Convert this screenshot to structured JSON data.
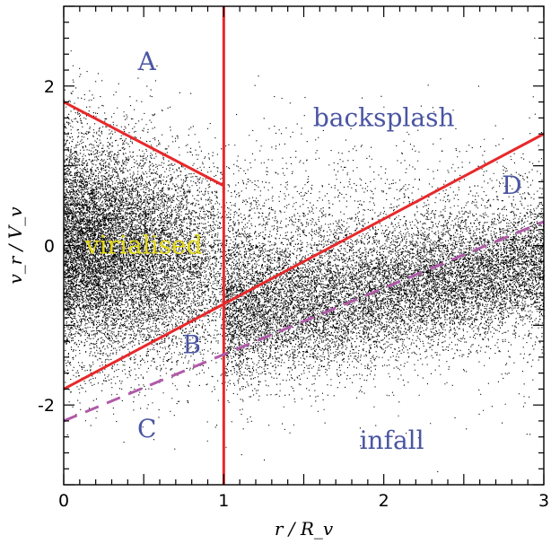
{
  "chart_data": {
    "type": "scatter",
    "title": "",
    "xlabel": "r / R_v",
    "ylabel": "v_r / V_v",
    "xlim": [
      0,
      3
    ],
    "ylim": [
      -3,
      3
    ],
    "xticks": [
      "0",
      "1",
      "2",
      "3"
    ],
    "yticks": [
      "-2",
      "0",
      "2"
    ],
    "grid": false,
    "colors": {
      "points": "#000000",
      "lines": "#e8282b",
      "dashed": "#b05aa8",
      "labels": "#4a55a2",
      "virialised": "#e3d713"
    },
    "lines": [
      {
        "id": "vertical",
        "style": "solid",
        "x": [
          1,
          1
        ],
        "y": [
          -3,
          3
        ]
      },
      {
        "id": "upper",
        "style": "solid",
        "x": [
          0,
          1
        ],
        "y": [
          1.8,
          0.75
        ]
      },
      {
        "id": "diagonal",
        "style": "solid",
        "x": [
          0,
          3
        ],
        "y": [
          -1.8,
          1.4
        ]
      },
      {
        "id": "infall-boundary",
        "style": "dashed",
        "x": [
          0,
          3
        ],
        "y": [
          -2.2,
          0.3
        ]
      }
    ],
    "region_labels": [
      {
        "text": "A",
        "x": 0.52,
        "y": 2.3,
        "color": "labels"
      },
      {
        "text": "backsplash",
        "x": 2.0,
        "y": 1.6,
        "color": "labels"
      },
      {
        "text": "D",
        "x": 2.8,
        "y": 0.75,
        "color": "labels"
      },
      {
        "text": "virialised",
        "x": 0.5,
        "y": 0.0,
        "color": "virialised"
      },
      {
        "text": "B",
        "x": 0.8,
        "y": -1.25,
        "color": "labels"
      },
      {
        "text": "C",
        "x": 0.52,
        "y": -2.3,
        "color": "labels"
      },
      {
        "text": "infall",
        "x": 2.05,
        "y": -2.45,
        "color": "labels"
      }
    ]
  }
}
